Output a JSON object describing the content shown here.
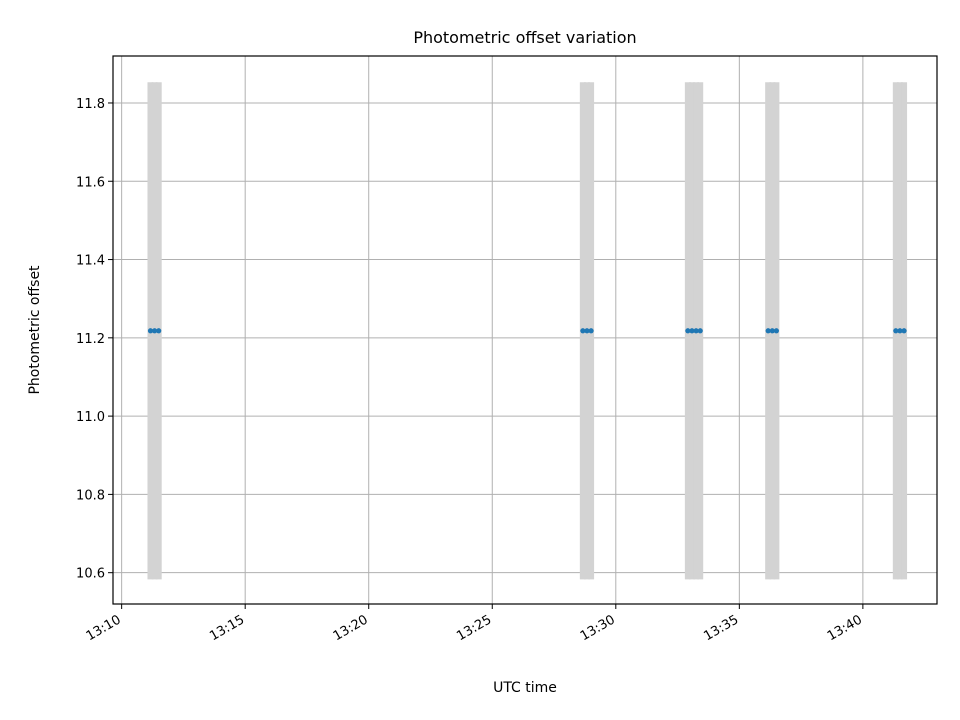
{
  "chart_data": {
    "type": "scatter",
    "title": "Photometric offset variation",
    "xlabel": "UTC time",
    "ylabel": "Photometric offset",
    "grid": true,
    "legend": "none",
    "xlim": [
      "13:09:39",
      "13:43:00"
    ],
    "ylim": [
      10.52,
      11.92
    ],
    "xticks": [
      "13:10",
      "13:15",
      "13:20",
      "13:25",
      "13:30",
      "13:35",
      "13:40"
    ],
    "yticks": [
      "10.6",
      "10.8",
      "11.0",
      "11.2",
      "11.4",
      "11.6",
      "11.8"
    ],
    "series": [
      {
        "color": "#1f77b4",
        "errorbar_color": "#d3d3d3",
        "points": [
          {
            "x": "13:11:10",
            "y": 11.218,
            "yerr": 0.635
          },
          {
            "x": "13:11:20",
            "y": 11.218,
            "yerr": 0.635
          },
          {
            "x": "13:11:30",
            "y": 11.218,
            "yerr": 0.635
          },
          {
            "x": "13:28:40",
            "y": 11.218,
            "yerr": 0.635
          },
          {
            "x": "13:28:50",
            "y": 11.218,
            "yerr": 0.635
          },
          {
            "x": "13:29:00",
            "y": 11.218,
            "yerr": 0.635
          },
          {
            "x": "13:32:55",
            "y": 11.218,
            "yerr": 0.635
          },
          {
            "x": "13:33:05",
            "y": 11.218,
            "yerr": 0.635
          },
          {
            "x": "13:33:15",
            "y": 11.218,
            "yerr": 0.635
          },
          {
            "x": "13:33:25",
            "y": 11.218,
            "yerr": 0.635
          },
          {
            "x": "13:36:10",
            "y": 11.218,
            "yerr": 0.635
          },
          {
            "x": "13:36:20",
            "y": 11.218,
            "yerr": 0.635
          },
          {
            "x": "13:36:30",
            "y": 11.218,
            "yerr": 0.635
          },
          {
            "x": "13:41:20",
            "y": 11.218,
            "yerr": 0.635
          },
          {
            "x": "13:41:30",
            "y": 11.218,
            "yerr": 0.635
          },
          {
            "x": "13:41:40",
            "y": 11.218,
            "yerr": 0.635
          }
        ]
      }
    ]
  }
}
